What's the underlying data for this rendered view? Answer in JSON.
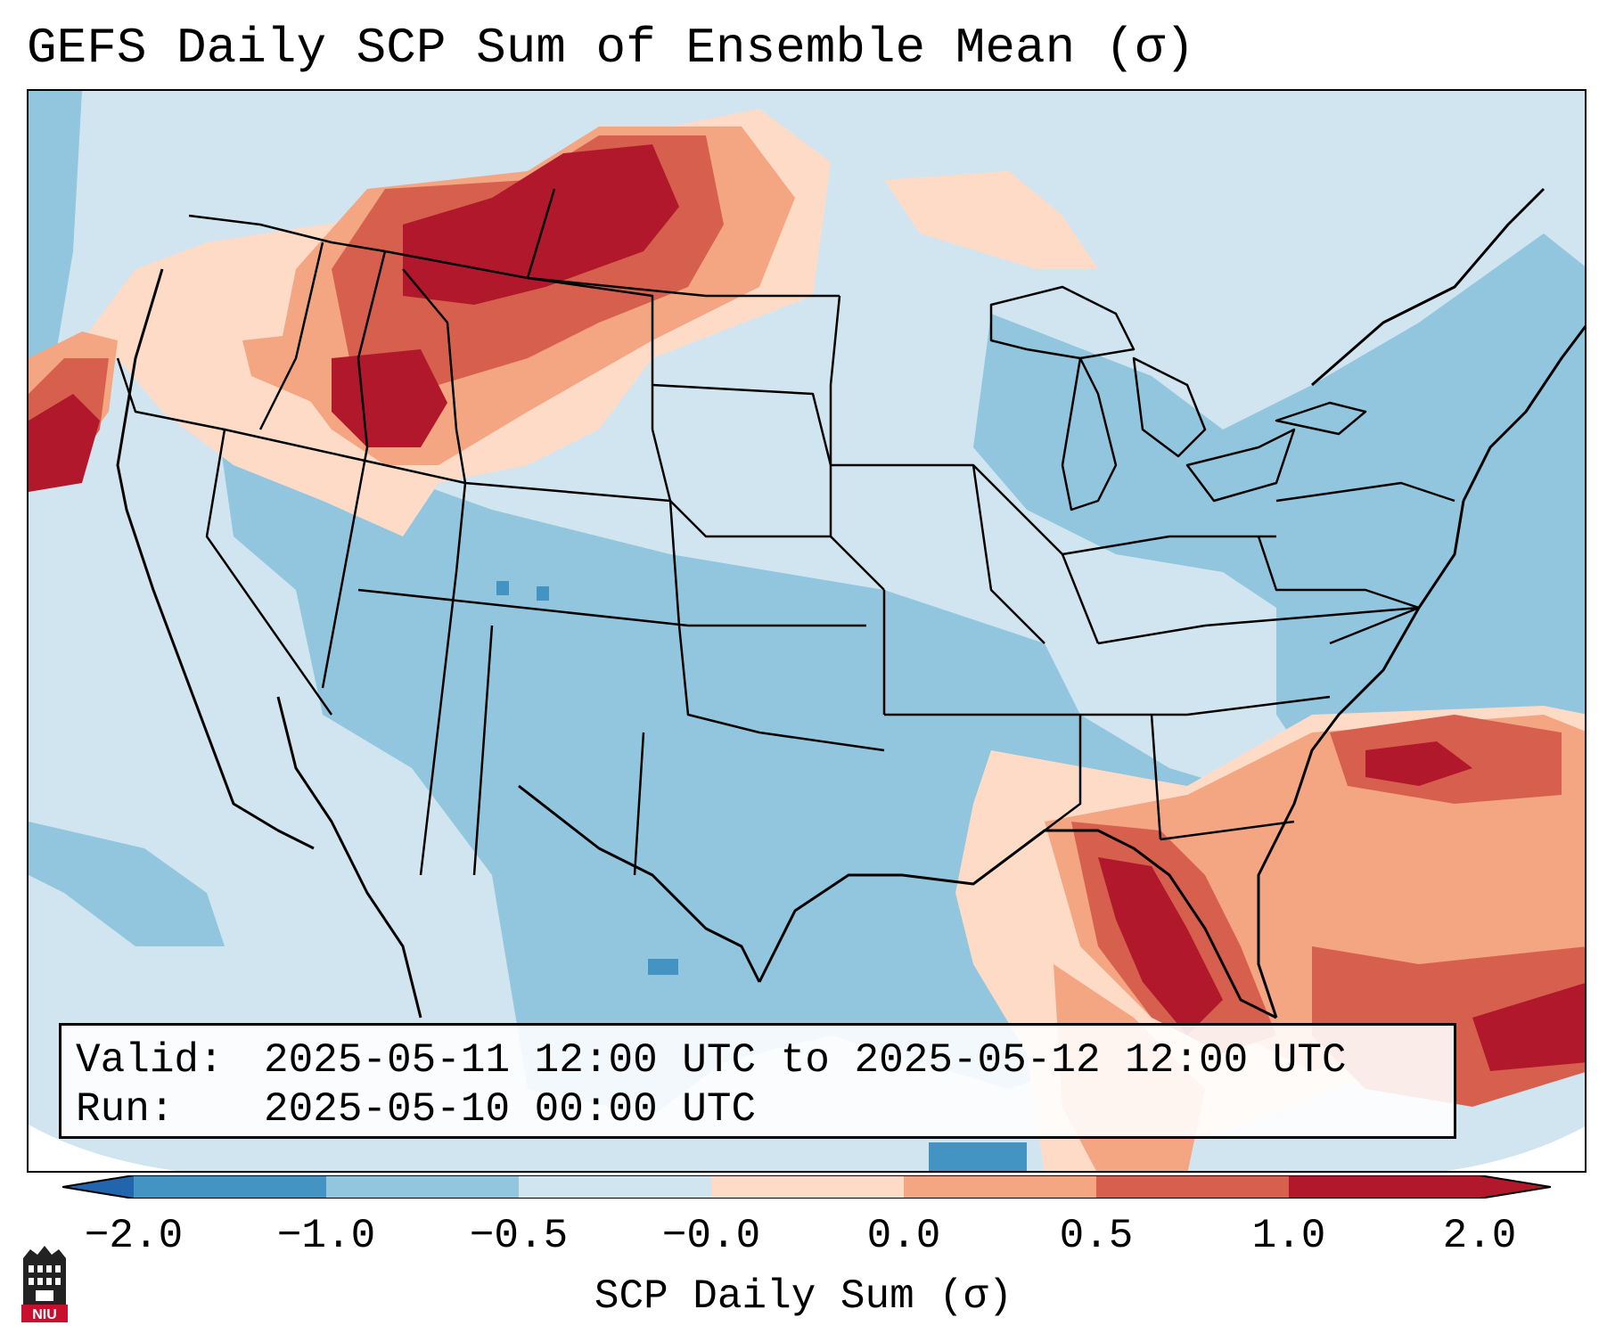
{
  "title": "GEFS Daily SCP Sum of Ensemble Mean (σ)",
  "info": {
    "valid_label": "Valid:",
    "valid_value": "2025-05-11 12:00 UTC to 2025-05-12 12:00 UTC",
    "run_label": "Run:",
    "run_value": "2025-05-10 00:00 UTC"
  },
  "colorbar": {
    "label": "SCP Daily Sum (σ)",
    "ticks": [
      "−2.0",
      "−1.0",
      "−0.5",
      "−0.0",
      "0.0",
      "0.5",
      "1.0",
      "2.0"
    ],
    "colors": {
      "below": "#2166ac",
      "bin_m2_m1": "#4393c3",
      "bin_m1_m05": "#92c5de",
      "bin_m05_0": "#d1e5f0",
      "bin_0_05": "#fddbc7",
      "bin_05_1": "#f4a582",
      "bin_1_2": "#d6604d",
      "above": "#b2182b"
    }
  },
  "logo": {
    "text": "NIU"
  }
}
